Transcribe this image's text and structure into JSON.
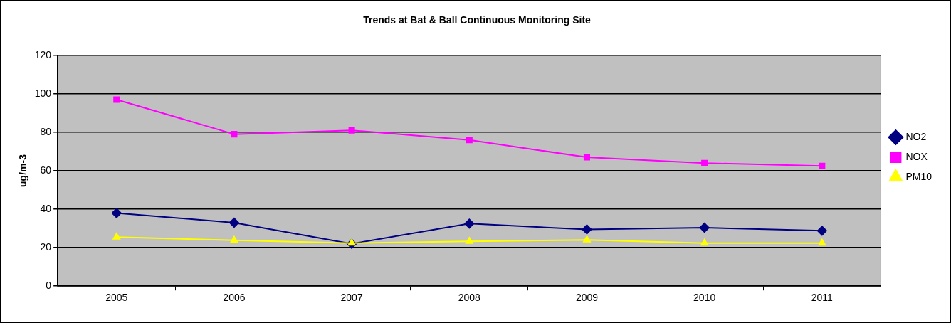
{
  "chart_data": {
    "type": "line",
    "title": "Trends at Bat & Ball Continuous Monitoring Site",
    "ylabel": "ug/m-3",
    "categories": [
      "2005",
      "2006",
      "2007",
      "2008",
      "2009",
      "2010",
      "2011"
    ],
    "series": [
      {
        "name": "NO2",
        "color": "#000080",
        "marker": "diamond",
        "values": [
          38,
          33,
          22,
          32.5,
          29.5,
          30.4,
          28.8
        ]
      },
      {
        "name": "NOX",
        "color": "#ff00ff",
        "marker": "square",
        "values": [
          97,
          79,
          81,
          76,
          67,
          64,
          62.5
        ]
      },
      {
        "name": "PM10",
        "color": "#ffff00",
        "marker": "triangle",
        "values": [
          25.5,
          23.8,
          22.4,
          23.3,
          24,
          22.4,
          22.4
        ]
      }
    ],
    "ylim": [
      0,
      120
    ],
    "yticks": [
      0,
      20,
      40,
      60,
      80,
      100,
      120
    ],
    "grid": "y",
    "legend": "right",
    "line_style": "solid"
  }
}
